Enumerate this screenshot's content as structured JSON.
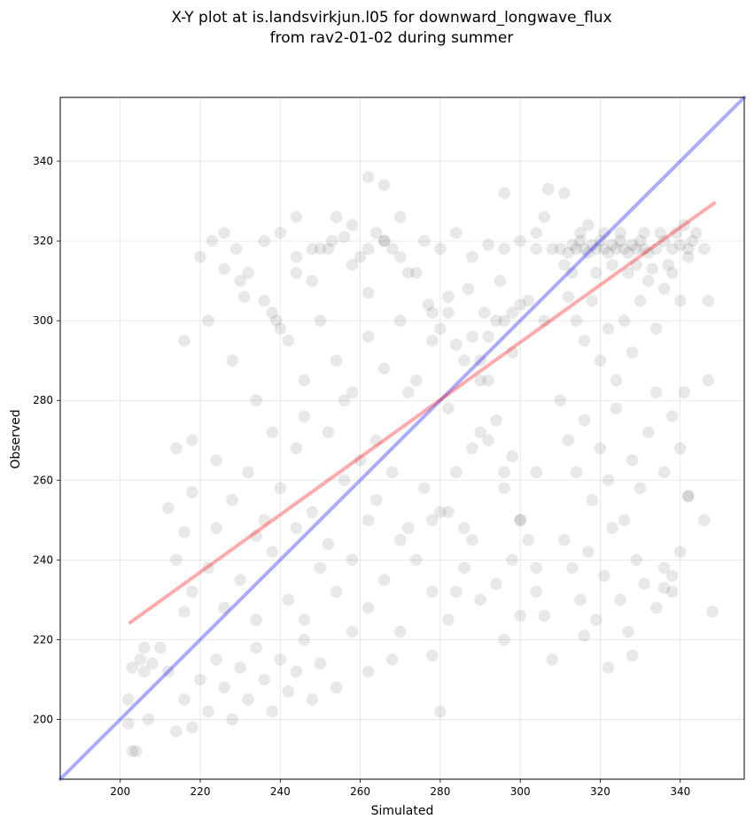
{
  "chart_data": {
    "type": "scatter",
    "title_lines": [
      "X-Y plot at is.landsvirkjun.l05 for downward_longwave_flux",
      "from rav2-01-02 during summer"
    ],
    "xlabel": "Simulated",
    "ylabel": "Observed",
    "xlim": [
      185,
      356
    ],
    "ylim": [
      185,
      356
    ],
    "xticks": [
      200,
      220,
      240,
      260,
      280,
      300,
      320,
      340
    ],
    "yticks": [
      200,
      220,
      240,
      260,
      280,
      300,
      320,
      340
    ],
    "grid": true,
    "point_color": "#000000",
    "point_alpha": 0.09,
    "lines": [
      {
        "kind": "one-to-one",
        "color": "#0000ff",
        "alpha": 0.33,
        "points": [
          [
            185,
            185
          ],
          [
            356,
            356
          ]
        ]
      },
      {
        "kind": "regression",
        "color": "#ff0000",
        "alpha": 0.33,
        "points": [
          [
            202.5,
            224.3
          ],
          [
            348.5,
            329.5
          ]
        ]
      }
    ],
    "points": [
      [
        220,
        316
      ],
      [
        223,
        320
      ],
      [
        226,
        322
      ],
      [
        229,
        318
      ],
      [
        232,
        312
      ],
      [
        236,
        305
      ],
      [
        240,
        322
      ],
      [
        244,
        316
      ],
      [
        248,
        310
      ],
      [
        252,
        318
      ],
      [
        256,
        321
      ],
      [
        260,
        316
      ],
      [
        264,
        322
      ],
      [
        268,
        318
      ],
      [
        272,
        312
      ],
      [
        276,
        320
      ],
      [
        280,
        318
      ],
      [
        284,
        322
      ],
      [
        288,
        316
      ],
      [
        292,
        319
      ],
      [
        296,
        318
      ],
      [
        300,
        320
      ],
      [
        304,
        322
      ],
      [
        308,
        318
      ],
      [
        216,
        295
      ],
      [
        222,
        300
      ],
      [
        228,
        290
      ],
      [
        234,
        280
      ],
      [
        238,
        302
      ],
      [
        242,
        295
      ],
      [
        246,
        285
      ],
      [
        250,
        300
      ],
      [
        254,
        290
      ],
      [
        258,
        282
      ],
      [
        262,
        296
      ],
      [
        266,
        288
      ],
      [
        270,
        300
      ],
      [
        274,
        285
      ],
      [
        278,
        295
      ],
      [
        282,
        302
      ],
      [
        286,
        290
      ],
      [
        290,
        285
      ],
      [
        294,
        300
      ],
      [
        298,
        292
      ],
      [
        302,
        305
      ],
      [
        306,
        300
      ],
      [
        218,
        270
      ],
      [
        224,
        265
      ],
      [
        228,
        255
      ],
      [
        232,
        262
      ],
      [
        236,
        250
      ],
      [
        240,
        258
      ],
      [
        244,
        268
      ],
      [
        248,
        252
      ],
      [
        252,
        272
      ],
      [
        256,
        260
      ],
      [
        260,
        265
      ],
      [
        264,
        255
      ],
      [
        268,
        262
      ],
      [
        272,
        248
      ],
      [
        276,
        258
      ],
      [
        280,
        252
      ],
      [
        284,
        262
      ],
      [
        288,
        245
      ],
      [
        292,
        270
      ],
      [
        296,
        258
      ],
      [
        300,
        250
      ],
      [
        304,
        262
      ],
      [
        214,
        240
      ],
      [
        218,
        232
      ],
      [
        222,
        238
      ],
      [
        226,
        228
      ],
      [
        230,
        235
      ],
      [
        234,
        225
      ],
      [
        238,
        242
      ],
      [
        242,
        230
      ],
      [
        246,
        225
      ],
      [
        250,
        238
      ],
      [
        254,
        232
      ],
      [
        258,
        240
      ],
      [
        262,
        228
      ],
      [
        266,
        235
      ],
      [
        270,
        222
      ],
      [
        274,
        240
      ],
      [
        278,
        232
      ],
      [
        282,
        225
      ],
      [
        286,
        238
      ],
      [
        290,
        230
      ],
      [
        296,
        220
      ],
      [
        300,
        226
      ],
      [
        304,
        232
      ],
      [
        206,
        218
      ],
      [
        212,
        212
      ],
      [
        216,
        205
      ],
      [
        218,
        198
      ],
      [
        220,
        210
      ],
      [
        222,
        202
      ],
      [
        224,
        215
      ],
      [
        226,
        208
      ],
      [
        228,
        200
      ],
      [
        230,
        213
      ],
      [
        232,
        205
      ],
      [
        234,
        218
      ],
      [
        236,
        210
      ],
      [
        238,
        202
      ],
      [
        240,
        215
      ],
      [
        242,
        207
      ],
      [
        244,
        212
      ],
      [
        246,
        220
      ],
      [
        248,
        205
      ],
      [
        250,
        214
      ],
      [
        254,
        208
      ],
      [
        258,
        222
      ],
      [
        262,
        212
      ],
      [
        268,
        215
      ],
      [
        224,
        248
      ],
      [
        234,
        246
      ],
      [
        244,
        248
      ],
      [
        252,
        244
      ],
      [
        262,
        250
      ],
      [
        270,
        245
      ],
      [
        278,
        250
      ],
      [
        238,
        272
      ],
      [
        246,
        276
      ],
      [
        256,
        280
      ],
      [
        264,
        270
      ],
      [
        272,
        282
      ],
      [
        282,
        278
      ],
      [
        290,
        272
      ],
      [
        298,
        266
      ],
      [
        310,
        318
      ],
      [
        312,
        317
      ],
      [
        313,
        319
      ],
      [
        314,
        318
      ],
      [
        315,
        320
      ],
      [
        316,
        318
      ],
      [
        317,
        317
      ],
      [
        318,
        319
      ],
      [
        319,
        318
      ],
      [
        320,
        320
      ],
      [
        321,
        318
      ],
      [
        322,
        317
      ],
      [
        323,
        319
      ],
      [
        324,
        318
      ],
      [
        325,
        320
      ],
      [
        326,
        318
      ],
      [
        327,
        317
      ],
      [
        328,
        319
      ],
      [
        329,
        318
      ],
      [
        330,
        320
      ],
      [
        331,
        318
      ],
      [
        332,
        317
      ],
      [
        334,
        318
      ],
      [
        336,
        320
      ],
      [
        338,
        318
      ],
      [
        340,
        319
      ],
      [
        342,
        318
      ],
      [
        311,
        314
      ],
      [
        313,
        312
      ],
      [
        315,
        322
      ],
      [
        317,
        324
      ],
      [
        319,
        312
      ],
      [
        321,
        322
      ],
      [
        323,
        314
      ],
      [
        325,
        322
      ],
      [
        327,
        312
      ],
      [
        329,
        314
      ],
      [
        331,
        322
      ],
      [
        333,
        313
      ],
      [
        335,
        322
      ],
      [
        337,
        314
      ],
      [
        339,
        322
      ],
      [
        341,
        324
      ],
      [
        343,
        320
      ],
      [
        312,
        306
      ],
      [
        314,
        300
      ],
      [
        316,
        295
      ],
      [
        318,
        305
      ],
      [
        320,
        290
      ],
      [
        322,
        298
      ],
      [
        324,
        285
      ],
      [
        326,
        300
      ],
      [
        328,
        292
      ],
      [
        330,
        305
      ],
      [
        332,
        310
      ],
      [
        334,
        298
      ],
      [
        336,
        308
      ],
      [
        338,
        312
      ],
      [
        340,
        305
      ],
      [
        342,
        316
      ],
      [
        344,
        322
      ],
      [
        310,
        280
      ],
      [
        312,
        270
      ],
      [
        314,
        262
      ],
      [
        316,
        275
      ],
      [
        318,
        255
      ],
      [
        320,
        268
      ],
      [
        322,
        260
      ],
      [
        324,
        278
      ],
      [
        326,
        250
      ],
      [
        328,
        265
      ],
      [
        330,
        258
      ],
      [
        332,
        272
      ],
      [
        334,
        282
      ],
      [
        336,
        262
      ],
      [
        338,
        276
      ],
      [
        340,
        268
      ],
      [
        342,
        256
      ],
      [
        311,
        245
      ],
      [
        313,
        238
      ],
      [
        315,
        230
      ],
      [
        317,
        242
      ],
      [
        319,
        225
      ],
      [
        321,
        236
      ],
      [
        323,
        248
      ],
      [
        325,
        230
      ],
      [
        327,
        222
      ],
      [
        329,
        240
      ],
      [
        331,
        234
      ],
      [
        334,
        228
      ],
      [
        336,
        238
      ],
      [
        338,
        232
      ],
      [
        340,
        242
      ],
      [
        346,
        250
      ],
      [
        300,
        250
      ],
      [
        304,
        238
      ],
      [
        306,
        226
      ],
      [
        308,
        215
      ],
      [
        294,
        234
      ],
      [
        298,
        240
      ],
      [
        302,
        245
      ],
      [
        296,
        262
      ],
      [
        294,
        275
      ],
      [
        292,
        285
      ],
      [
        288,
        268
      ],
      [
        286,
        248
      ],
      [
        284,
        232
      ],
      [
        282,
        252
      ],
      [
        280,
        202
      ],
      [
        278,
        216
      ],
      [
        348,
        227
      ],
      [
        347,
        285
      ],
      [
        347,
        305
      ],
      [
        346,
        318
      ],
      [
        341,
        282
      ],
      [
        342,
        256
      ],
      [
        338,
        236
      ],
      [
        336,
        233
      ],
      [
        322,
        213
      ],
      [
        328,
        216
      ],
      [
        316,
        221
      ],
      [
        311,
        332
      ],
      [
        307,
        333
      ],
      [
        304,
        318
      ],
      [
        296,
        332
      ],
      [
        306,
        326
      ],
      [
        212,
        253
      ],
      [
        214,
        268
      ],
      [
        216,
        247
      ],
      [
        218,
        257
      ],
      [
        216,
        227
      ],
      [
        210,
        218
      ],
      [
        208,
        214
      ],
      [
        206,
        212
      ],
      [
        204,
        192
      ],
      [
        203,
        192
      ],
      [
        202,
        199
      ],
      [
        202,
        205
      ],
      [
        203,
        213
      ],
      [
        205,
        215
      ],
      [
        207,
        200
      ],
      [
        214,
        197
      ],
      [
        231,
        306
      ],
      [
        236,
        320
      ],
      [
        239,
        300
      ],
      [
        244,
        326
      ],
      [
        248,
        318
      ],
      [
        253,
        320
      ],
      [
        258,
        324
      ],
      [
        262,
        307
      ],
      [
        266,
        334
      ],
      [
        270,
        326
      ],
      [
        277,
        304
      ],
      [
        282,
        306
      ],
      [
        287,
        308
      ],
      [
        291,
        302
      ],
      [
        295,
        310
      ],
      [
        262,
        336
      ],
      [
        266,
        320
      ],
      [
        226,
        313
      ],
      [
        230,
        310
      ],
      [
        240,
        298
      ],
      [
        244,
        312
      ],
      [
        250,
        318
      ],
      [
        254,
        326
      ],
      [
        258,
        314
      ],
      [
        262,
        318
      ],
      [
        266,
        320
      ],
      [
        270,
        316
      ],
      [
        274,
        312
      ],
      [
        278,
        302
      ],
      [
        280,
        298
      ],
      [
        284,
        294
      ],
      [
        288,
        296
      ],
      [
        290,
        290
      ],
      [
        292,
        296
      ],
      [
        296,
        300
      ],
      [
        298,
        302
      ],
      [
        300,
        304
      ]
    ]
  }
}
